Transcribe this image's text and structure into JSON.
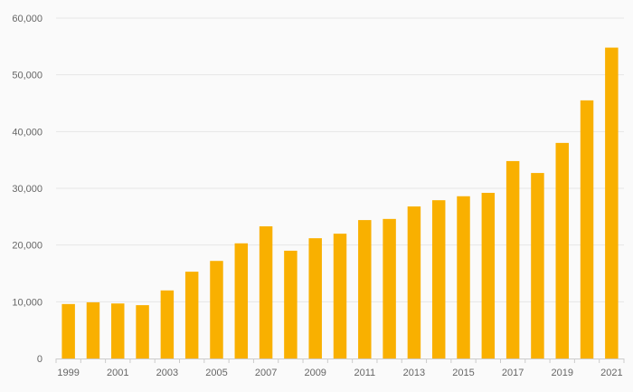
{
  "chart_data": {
    "type": "bar",
    "title": "",
    "xlabel": "",
    "ylabel": "",
    "categories": [
      "1999",
      "2000",
      "2001",
      "2002",
      "2003",
      "2004",
      "2005",
      "2006",
      "2007",
      "2008",
      "2009",
      "2010",
      "2011",
      "2012",
      "2013",
      "2014",
      "2015",
      "2016",
      "2017",
      "2018",
      "2019",
      "2020",
      "2021"
    ],
    "values": [
      9600,
      9900,
      9700,
      9400,
      12000,
      15300,
      17200,
      20300,
      23300,
      19000,
      21200,
      22000,
      24400,
      24600,
      26800,
      27900,
      28600,
      29200,
      34800,
      32700,
      38000,
      45500,
      54800
    ],
    "x_tick_labels": [
      "1999",
      "2001",
      "2003",
      "2005",
      "2007",
      "2009",
      "2011",
      "2013",
      "2015",
      "2017",
      "2019",
      "2021"
    ],
    "y_tick_labels": [
      "0",
      "10,000",
      "20,000",
      "30,000",
      "40,000",
      "50,000",
      "60,000"
    ],
    "y_ticks": [
      0,
      10000,
      20000,
      30000,
      40000,
      50000,
      60000
    ],
    "ylim": [
      0,
      60000
    ],
    "grid": true,
    "legend": "none",
    "bar_color": "#f9b000",
    "grid_color": "#e6e6e6",
    "axis_color": "#cccccc",
    "text_color": "#666666"
  }
}
